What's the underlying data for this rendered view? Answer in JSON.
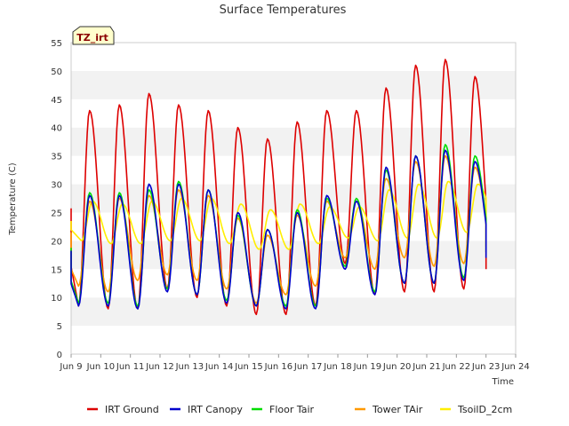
{
  "chart_data": {
    "type": "line",
    "title": "Surface Temperatures",
    "xlabel": "Time",
    "ylabel": "Temperature (C)",
    "badge": "TZ_irt",
    "xlim": [
      0,
      15
    ],
    "ylim": [
      0,
      55
    ],
    "x_ticks": [
      0,
      1,
      2,
      3,
      4,
      5,
      6,
      7,
      8,
      9,
      10,
      11,
      12,
      13,
      14,
      15
    ],
    "x_tick_labels": [
      "Jun 9",
      "Jun 10",
      "Jun 11",
      "Jun 12",
      "Jun 13",
      "Jun 14",
      "Jun 15",
      "Jun 16",
      "Jun 17",
      "Jun 18",
      "Jun 19",
      "Jun 20",
      "Jun 21",
      "Jun 22",
      "Jun 23",
      "Jun 24"
    ],
    "y_ticks": [
      0,
      5,
      10,
      15,
      20,
      25,
      30,
      35,
      40,
      45,
      50,
      55
    ],
    "grid": "horizontal-bands",
    "legend_position": "bottom",
    "day_offset_label": "days from Jun 9 00:00",
    "series": [
      {
        "name": "IRT Ground",
        "color": "#dd0000",
        "daily_max": [
          43,
          44,
          46,
          44,
          43,
          40,
          38,
          41,
          43,
          43,
          47,
          51,
          52,
          49
        ],
        "daily_min": [
          8.5,
          8,
          8,
          11.5,
          10,
          8.5,
          7,
          7,
          8.5,
          16,
          10.5,
          11,
          11,
          11.5
        ],
        "end_value": 15
      },
      {
        "name": "IRT Canopy",
        "color": "#0000cc",
        "daily_max": [
          28,
          28,
          30,
          30,
          29,
          25,
          22,
          25,
          28,
          27,
          33,
          35,
          36,
          34
        ],
        "daily_min": [
          8.5,
          8.5,
          8,
          11,
          10.5,
          9,
          8.5,
          8,
          8,
          15,
          10.5,
          12.5,
          12.5,
          13
        ],
        "end_value": 17
      },
      {
        "name": "Floor Tair",
        "color": "#00dd00",
        "daily_max": [
          28.5,
          28.5,
          29,
          30.5,
          29,
          24.5,
          22,
          25.5,
          27.5,
          27.5,
          32.5,
          35,
          37,
          35
        ],
        "daily_min": [
          9,
          9,
          8.5,
          11.5,
          10.5,
          9.5,
          8.5,
          8.5,
          8.5,
          15.5,
          11,
          12.5,
          12.5,
          13.5
        ],
        "end_value": 18
      },
      {
        "name": "Tower TAir",
        "color": "#ff9900",
        "daily_max": [
          27,
          27.5,
          28,
          29,
          28,
          24,
          21,
          24.5,
          27,
          27,
          31,
          34,
          35,
          33
        ],
        "daily_min": [
          12,
          11,
          13,
          14,
          13,
          11.5,
          9,
          10.5,
          12,
          17,
          15,
          17,
          15.5,
          16
        ],
        "end_value": 19
      },
      {
        "name": "TsoilD_2cm",
        "color": "#ffee00",
        "daily_max": [
          27,
          26.5,
          27,
          27.5,
          27.5,
          26.5,
          25.5,
          26.5,
          26,
          26,
          29,
          30,
          30.5,
          30
        ],
        "daily_min": [
          20,
          19.5,
          19.5,
          20,
          20,
          19.5,
          18.5,
          18.5,
          19.5,
          20.5,
          20,
          20.5,
          20.5,
          21.5
        ],
        "end_value": 24
      }
    ]
  }
}
